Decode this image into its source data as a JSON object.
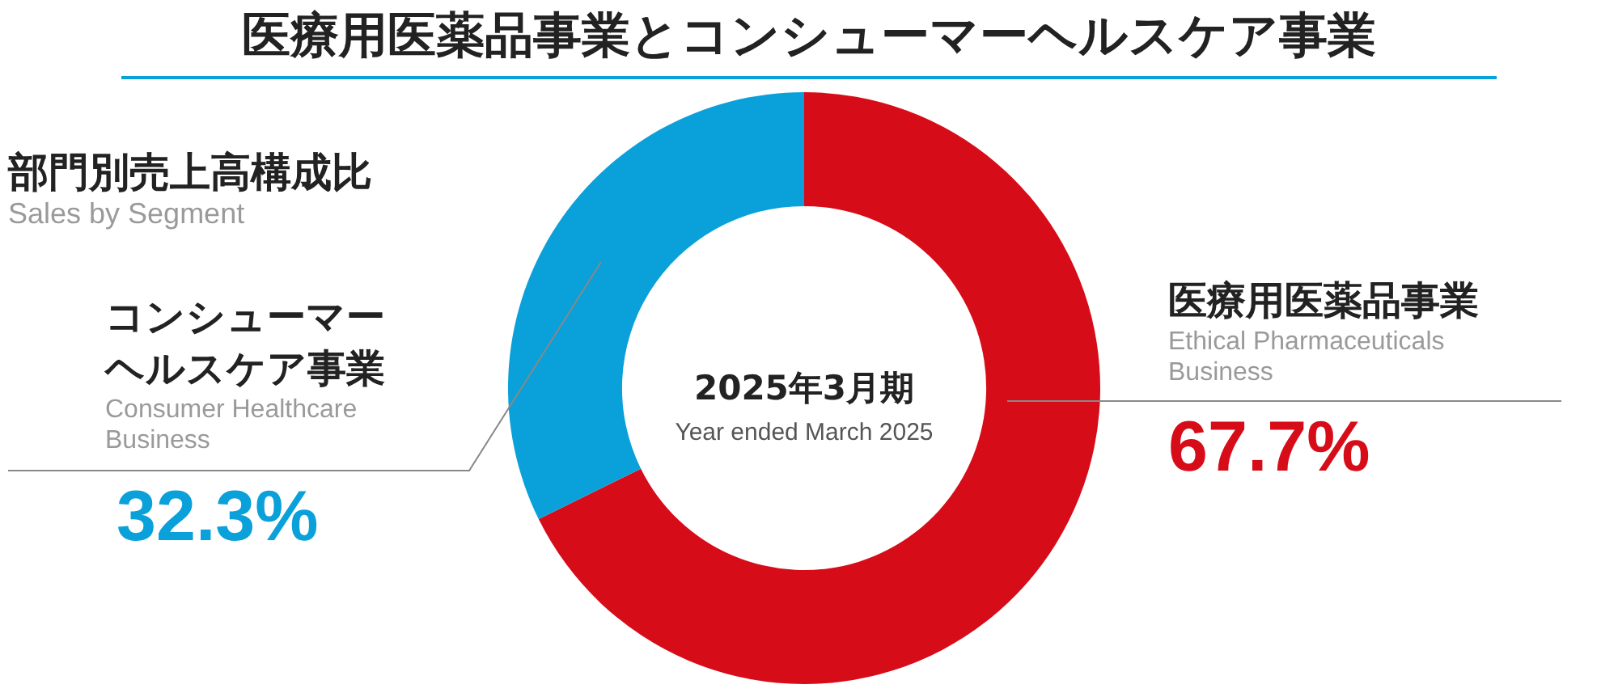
{
  "chart_data": {
    "type": "donut",
    "title": "医療用医薬品事業とコンシューマーヘルスケア事業",
    "subtitle": "部門別売上高構成比",
    "categories": [
      "医療用医薬品事業",
      "コンシューマーヘルスケア事業"
    ],
    "values": [
      67.7,
      32.3
    ],
    "colors": [
      "#d70c19",
      "#0aa0da"
    ],
    "value_labels": [
      "67.7%",
      "32.3%"
    ],
    "annotations": [
      "Sales by Segment",
      "Ethical Pharmaceuticals Business",
      "Consumer Healthcare Business",
      "2025年3月期",
      "Year ended March 2025"
    ]
  }
}
